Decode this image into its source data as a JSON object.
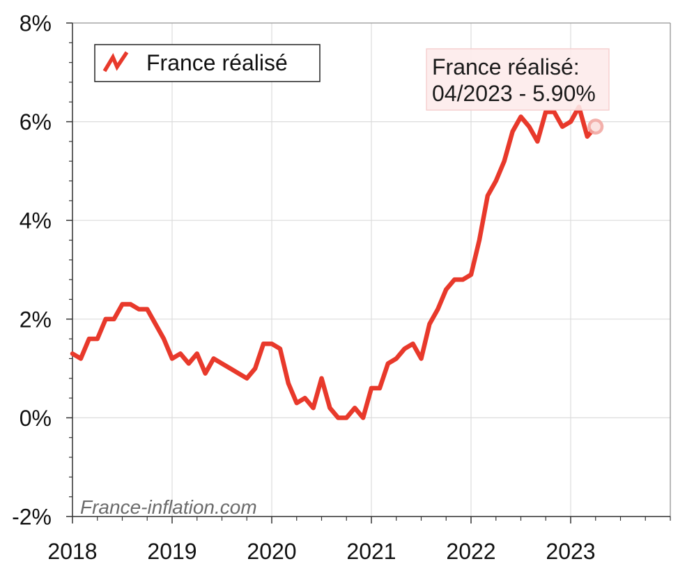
{
  "chart_data": {
    "type": "line",
    "xlim": [
      "2018-01",
      "2024-01"
    ],
    "ylim": [
      -2,
      8
    ],
    "grid": true,
    "y_ticks": [
      {
        "value": -2,
        "label": "-2%"
      },
      {
        "value": 0,
        "label": "0%"
      },
      {
        "value": 2,
        "label": "2%"
      },
      {
        "value": 4,
        "label": "4%"
      },
      {
        "value": 6,
        "label": "6%"
      },
      {
        "value": 8,
        "label": "8%"
      }
    ],
    "x_ticks": [
      {
        "value": "2018-01",
        "label": "2018"
      },
      {
        "value": "2019-01",
        "label": "2019"
      },
      {
        "value": "2020-01",
        "label": "2020"
      },
      {
        "value": "2021-01",
        "label": "2021"
      },
      {
        "value": "2022-01",
        "label": "2022"
      },
      {
        "value": "2023-01",
        "label": "2023"
      }
    ],
    "legend": {
      "placement": "top-left",
      "icon": "zigzag-line-icon"
    },
    "series": [
      {
        "name": "France réalisé",
        "color": "#e8392b",
        "x": [
          "2018-01",
          "2018-02",
          "2018-03",
          "2018-04",
          "2018-05",
          "2018-06",
          "2018-07",
          "2018-08",
          "2018-09",
          "2018-10",
          "2018-11",
          "2018-12",
          "2019-01",
          "2019-02",
          "2019-03",
          "2019-04",
          "2019-05",
          "2019-06",
          "2019-07",
          "2019-08",
          "2019-09",
          "2019-10",
          "2019-11",
          "2019-12",
          "2020-01",
          "2020-02",
          "2020-03",
          "2020-04",
          "2020-05",
          "2020-06",
          "2020-07",
          "2020-08",
          "2020-09",
          "2020-10",
          "2020-11",
          "2020-12",
          "2021-01",
          "2021-02",
          "2021-03",
          "2021-04",
          "2021-05",
          "2021-06",
          "2021-07",
          "2021-08",
          "2021-09",
          "2021-10",
          "2021-11",
          "2021-12",
          "2022-01",
          "2022-02",
          "2022-03",
          "2022-04",
          "2022-05",
          "2022-06",
          "2022-07",
          "2022-08",
          "2022-09",
          "2022-10",
          "2022-11",
          "2022-12",
          "2023-01",
          "2023-02",
          "2023-03",
          "2023-04"
        ],
        "y": [
          1.3,
          1.2,
          1.6,
          1.6,
          2.0,
          2.0,
          2.3,
          2.3,
          2.2,
          2.2,
          1.9,
          1.6,
          1.2,
          1.3,
          1.1,
          1.3,
          0.9,
          1.2,
          1.1,
          1.0,
          0.9,
          0.8,
          1.0,
          1.5,
          1.5,
          1.4,
          0.7,
          0.3,
          0.4,
          0.2,
          0.8,
          0.2,
          0.0,
          0.0,
          0.2,
          0.0,
          0.6,
          0.6,
          1.1,
          1.2,
          1.4,
          1.5,
          1.2,
          1.9,
          2.2,
          2.6,
          2.8,
          2.8,
          2.9,
          3.6,
          4.5,
          4.8,
          5.2,
          5.8,
          6.1,
          5.9,
          5.6,
          6.2,
          6.2,
          5.9,
          6.0,
          6.3,
          5.7,
          5.9
        ]
      }
    ],
    "tooltip": {
      "title": "France réalisé:",
      "text": "04/2023 - 5.90%",
      "x": "2023-04",
      "y": 5.9
    },
    "watermark": "France-inflation.com"
  }
}
